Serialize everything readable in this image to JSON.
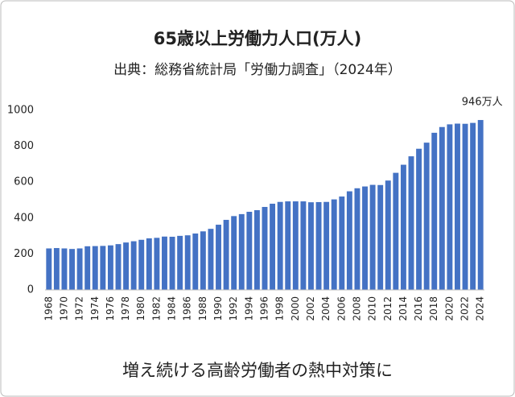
{
  "chart_data": {
    "type": "bar",
    "title": "65歳以上労働力人口(万人)",
    "subtitle": "出典：総務省統計局「労働力調査」（2024年）",
    "annotation": "946万人",
    "footer": "増え続ける高齢労働者の熱中対策に",
    "categories": [
      "1968",
      null,
      "1970",
      null,
      "1972",
      null,
      "1974",
      null,
      "1976",
      null,
      "1978",
      null,
      "1980",
      null,
      "1982",
      null,
      "1984",
      null,
      "1986",
      null,
      "1988",
      null,
      "1990",
      null,
      "1992",
      null,
      "1994",
      null,
      "1996",
      null,
      "1998",
      null,
      "2000",
      null,
      "2002",
      null,
      "2004",
      null,
      "2006",
      null,
      "2008",
      null,
      "2010",
      null,
      "2012",
      null,
      "2014",
      null,
      "2016",
      null,
      "2018",
      null,
      "2020",
      null,
      "2022",
      null,
      "2024"
    ],
    "values": [
      231,
      233,
      231,
      228,
      231,
      243,
      244,
      245,
      248,
      255,
      264,
      271,
      279,
      287,
      290,
      297,
      296,
      301,
      304,
      314,
      326,
      340,
      363,
      390,
      411,
      422,
      435,
      444,
      462,
      480,
      490,
      493,
      493,
      493,
      488,
      489,
      490,
      504,
      520,
      549,
      566,
      576,
      585,
      584,
      609,
      652,
      697,
      744,
      786,
      820,
      875,
      907,
      922,
      926,
      925,
      930,
      946
    ],
    "color": "#4472c4",
    "ylim": [
      0,
      1000
    ],
    "yticks": [
      0,
      200,
      400,
      600,
      800,
      1000
    ],
    "grid": false
  }
}
